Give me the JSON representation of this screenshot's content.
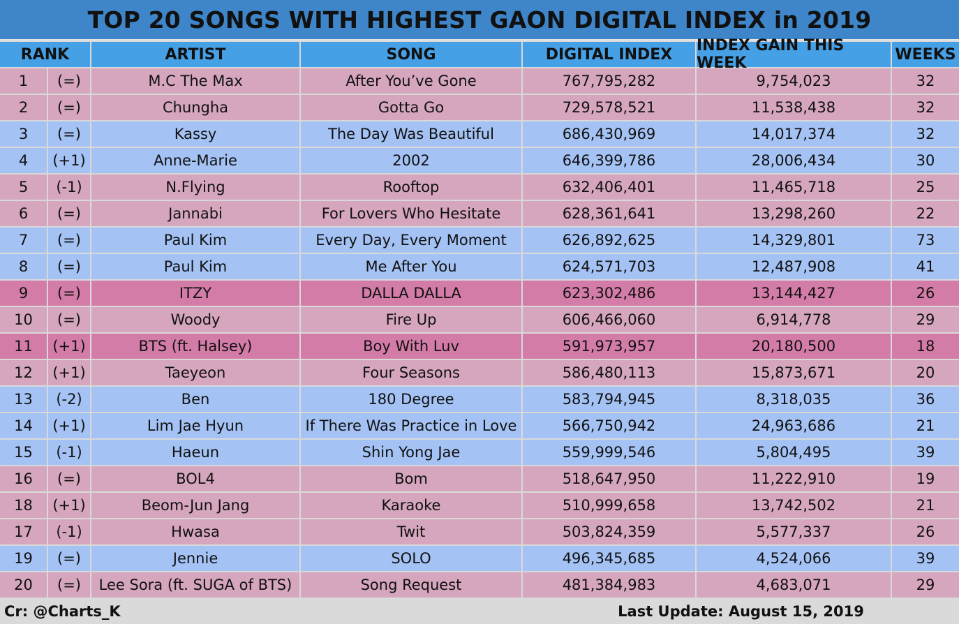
{
  "title": "TOP 20 SONGS WITH HIGHEST GAON DIGITAL INDEX in 2019",
  "headers": {
    "rank": "RANK",
    "artist": "ARTIST",
    "song": "SONG",
    "digital_index": "DIGITAL INDEX",
    "index_gain": "INDEX GAIN THIS WEEK",
    "weeks": "WEEKS"
  },
  "colors": {
    "title_bg": "#3e86c9",
    "header_bg": "#46a0e6",
    "pink": "#d5a6bd",
    "blue": "#a4c2f4",
    "magenta": "#d47ca8",
    "footer_bg": "#dadada"
  },
  "chart_data": {
    "type": "table",
    "title": "TOP 20 SONGS WITH HIGHEST GAON DIGITAL INDEX in 2019",
    "columns": [
      "RANK",
      "",
      "ARTIST",
      "SONG",
      "DIGITAL INDEX",
      "INDEX GAIN THIS WEEK",
      "WEEKS"
    ],
    "rows": [
      {
        "rank": "1",
        "change": "(=)",
        "artist": "M.C The Max",
        "song": "After You’ve Gone",
        "index": "767,795,282",
        "gain": "9,754,023",
        "weeks": "32",
        "color": "pink"
      },
      {
        "rank": "2",
        "change": "(=)",
        "artist": "Chungha",
        "song": "Gotta Go",
        "index": "729,578,521",
        "gain": "11,538,438",
        "weeks": "32",
        "color": "pink"
      },
      {
        "rank": "3",
        "change": "(=)",
        "artist": "Kassy",
        "song": "The Day Was Beautiful",
        "index": "686,430,969",
        "gain": "14,017,374",
        "weeks": "32",
        "color": "blue"
      },
      {
        "rank": "4",
        "change": "(+1)",
        "artist": "Anne-Marie",
        "song": "2002",
        "index": "646,399,786",
        "gain": "28,006,434",
        "weeks": "30",
        "color": "blue"
      },
      {
        "rank": "5",
        "change": "(-1)",
        "artist": "N.Flying",
        "song": "Rooftop",
        "index": "632,406,401",
        "gain": "11,465,718",
        "weeks": "25",
        "color": "pink"
      },
      {
        "rank": "6",
        "change": "(=)",
        "artist": "Jannabi",
        "song": "For Lovers Who Hesitate",
        "index": "628,361,641",
        "gain": "13,298,260",
        "weeks": "22",
        "color": "pink"
      },
      {
        "rank": "7",
        "change": "(=)",
        "artist": "Paul Kim",
        "song": "Every Day, Every Moment",
        "index": "626,892,625",
        "gain": "14,329,801",
        "weeks": "73",
        "color": "blue"
      },
      {
        "rank": "8",
        "change": "(=)",
        "artist": "Paul Kim",
        "song": "Me After You",
        "index": "624,571,703",
        "gain": "12,487,908",
        "weeks": "41",
        "color": "blue"
      },
      {
        "rank": "9",
        "change": "(=)",
        "artist": "ITZY",
        "song": "DALLA DALLA",
        "index": "623,302,486",
        "gain": "13,144,427",
        "weeks": "26",
        "color": "magenta"
      },
      {
        "rank": "10",
        "change": "(=)",
        "artist": "Woody",
        "song": "Fire Up",
        "index": "606,466,060",
        "gain": "6,914,778",
        "weeks": "29",
        "color": "pink"
      },
      {
        "rank": "11",
        "change": "(+1)",
        "artist": "BTS (ft. Halsey)",
        "song": "Boy With Luv",
        "index": "591,973,957",
        "gain": "20,180,500",
        "weeks": "18",
        "color": "magenta"
      },
      {
        "rank": "12",
        "change": "(+1)",
        "artist": "Taeyeon",
        "song": "Four Seasons",
        "index": "586,480,113",
        "gain": "15,873,671",
        "weeks": "20",
        "color": "pink"
      },
      {
        "rank": "13",
        "change": "(-2)",
        "artist": "Ben",
        "song": "180 Degree",
        "index": "583,794,945",
        "gain": "8,318,035",
        "weeks": "36",
        "color": "blue"
      },
      {
        "rank": "14",
        "change": "(+1)",
        "artist": "Lim Jae Hyun",
        "song": "If There Was Practice in Love",
        "index": "566,750,942",
        "gain": "24,963,686",
        "weeks": "21",
        "color": "blue"
      },
      {
        "rank": "15",
        "change": "(-1)",
        "artist": "Haeun",
        "song": "Shin Yong Jae",
        "index": "559,999,546",
        "gain": "5,804,495",
        "weeks": "39",
        "color": "blue"
      },
      {
        "rank": "16",
        "change": "(=)",
        "artist": "BOL4",
        "song": "Bom",
        "index": "518,647,950",
        "gain": "11,222,910",
        "weeks": "19",
        "color": "pink"
      },
      {
        "rank": "18",
        "change": "(+1)",
        "artist": "Beom-Jun Jang",
        "song": "Karaoke",
        "index": "510,999,658",
        "gain": "13,742,502",
        "weeks": "21",
        "color": "pink"
      },
      {
        "rank": "17",
        "change": "(-1)",
        "artist": "Hwasa",
        "song": "Twit",
        "index": "503,824,359",
        "gain": "5,577,337",
        "weeks": "26",
        "color": "pink"
      },
      {
        "rank": "19",
        "change": "(=)",
        "artist": "Jennie",
        "song": "SOLO",
        "index": "496,345,685",
        "gain": "4,524,066",
        "weeks": "39",
        "color": "blue"
      },
      {
        "rank": "20",
        "change": "(=)",
        "artist": "Lee Sora (ft. SUGA of BTS)",
        "song": "Song Request",
        "index": "481,384,983",
        "gain": "4,683,071",
        "weeks": "29",
        "color": "pink"
      }
    ]
  },
  "footer": {
    "credit": "Cr: @Charts_K",
    "update": "Last Update: August 15, 2019"
  }
}
